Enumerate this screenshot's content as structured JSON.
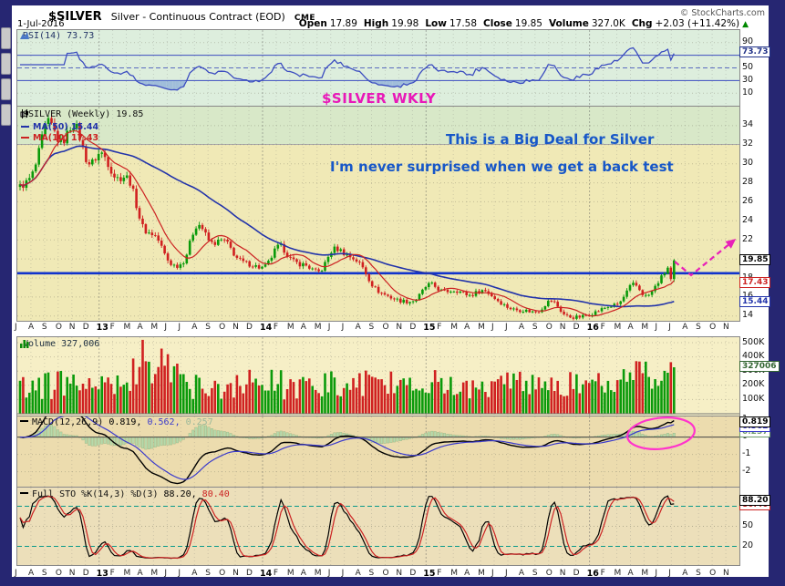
{
  "frame": {
    "color": "#262672"
  },
  "header": {
    "symbol": "$SILVER",
    "description": "Silver - Continuous Contract (EOD)",
    "exchange": "CME",
    "copyright": "© StockCharts.com",
    "date": "1-Jul-2016",
    "quote": [
      {
        "label": "Open",
        "value": "17.89"
      },
      {
        "label": "High",
        "value": "19.98"
      },
      {
        "label": "Low",
        "value": "17.58"
      },
      {
        "label": "Close",
        "value": "19.85"
      },
      {
        "label": "Volume",
        "value": "327.0K"
      },
      {
        "label": "Chg",
        "value": "+2.03 (+11.42%)"
      }
    ],
    "chg_direction": "up"
  },
  "panels": {
    "rsi": {
      "label": "RSI(14) 73.73",
      "ticks": [
        {
          "v": 90,
          "t": "90"
        },
        {
          "v": 70,
          "t": "70"
        },
        {
          "v": 50,
          "t": "50"
        },
        {
          "v": 30,
          "t": "30"
        },
        {
          "v": 10,
          "t": "10"
        }
      ],
      "boxes": [
        {
          "t": "73.73",
          "v": 73.73,
          "c": "#223388"
        }
      ]
    },
    "price": {
      "label": "$SILVER (Weekly) 19.85",
      "ma50_label": "MA(50) 15.44",
      "ma10_label": "MA(10) 17.43",
      "ticks": [
        {
          "v": 34,
          "t": "34"
        },
        {
          "v": 32,
          "t": "32"
        },
        {
          "v": 30,
          "t": "30"
        },
        {
          "v": 28,
          "t": "28"
        },
        {
          "v": 26,
          "t": "26"
        },
        {
          "v": 24,
          "t": "24"
        },
        {
          "v": 22,
          "t": "22"
        },
        {
          "v": 20,
          "t": "20"
        },
        {
          "v": 18,
          "t": "18"
        },
        {
          "v": 16,
          "t": "16"
        },
        {
          "v": 14,
          "t": "14"
        }
      ],
      "boxes": [
        {
          "t": "19.85",
          "v": 19.85,
          "c": "#000000"
        },
        {
          "t": "17.43",
          "v": 17.43,
          "c": "#cc2222"
        },
        {
          "t": "15.44",
          "v": 15.44,
          "c": "#2233aa"
        }
      ]
    },
    "volume": {
      "label": "Volume 327,006",
      "ticks": [
        {
          "v": 500000,
          "t": "500K"
        },
        {
          "v": 400000,
          "t": "400K"
        },
        {
          "v": 300000,
          "t": "300K"
        },
        {
          "v": 200000,
          "t": "200K"
        },
        {
          "v": 100000,
          "t": "100K"
        }
      ],
      "boxes": [
        {
          "t": "327006",
          "v": 327006,
          "c": "#336633"
        }
      ]
    },
    "macd": {
      "label": "MACD(12,26,9)",
      "values": [
        "0.819,",
        "0.562,",
        "0.257"
      ],
      "ticks": [
        {
          "v": 1,
          "t": "1"
        },
        {
          "v": 0,
          "t": "0"
        },
        {
          "v": -1,
          "t": "-1"
        },
        {
          "v": -2,
          "t": "-2"
        }
      ],
      "boxes": [
        {
          "t": "0.819",
          "v": 0.819,
          "c": "#000000"
        },
        {
          "t": "0.562",
          "v": 0.562,
          "c": "#3a3acc"
        },
        {
          "t": "0.257",
          "v": 0.257,
          "c": "#6a9a6a"
        }
      ]
    },
    "sto": {
      "label": "Full STO %K(14,3) %D(3)",
      "values": [
        "88.20,",
        "80.40"
      ],
      "ticks": [
        {
          "v": 80,
          "t": "80"
        },
        {
          "v": 50,
          "t": "50"
        },
        {
          "v": 20,
          "t": "20"
        }
      ],
      "boxes": [
        {
          "t": "88.20",
          "v": 88.2,
          "c": "#000000"
        },
        {
          "t": "80.40",
          "v": 80.4,
          "c": "#cc2222"
        }
      ]
    }
  },
  "annotations": {
    "wkly": "$SILVER WKLY",
    "line1": "This is a Big Deal for Silver",
    "line2": "I'm never surprised when we get a back test",
    "arrow_color": "#e820b8",
    "ellipse_color": "#ff33cc"
  },
  "colors": {
    "candle_up": "#0a9a0a",
    "candle_down": "#d02020",
    "ma50": "#2233aa",
    "ma10": "#cc2222",
    "support_line": "#1133cc",
    "rsi_line": "#3b4cc0",
    "macd_line": "#000000",
    "macd_signal": "#3a3acc",
    "macd_hist": "#b7d9aa",
    "sto_k": "#000000",
    "sto_d": "#cc2222"
  },
  "chart_data": {
    "type": "candlestick",
    "timeframe": "weekly",
    "weeks": 209,
    "x_month_labels": [
      "J",
      "A",
      "S",
      "O",
      "N",
      "D",
      "13",
      "F",
      "M",
      "A",
      "M",
      "J",
      "J",
      "A",
      "S",
      "O",
      "N",
      "D",
      "14",
      "F",
      "M",
      "A",
      "M",
      "J",
      "J",
      "A",
      "S",
      "O",
      "N",
      "D",
      "15",
      "F",
      "M",
      "A",
      "M",
      "J",
      "J",
      "A",
      "S",
      "O",
      "N",
      "D",
      "16",
      "F",
      "M",
      "A",
      "M",
      "J",
      "J",
      "A",
      "S",
      "O",
      "N"
    ],
    "year_label_indices": [
      6,
      18,
      30,
      42
    ],
    "price": {
      "monthly_closes": [
        27.6,
        29.2,
        34.3,
        32.2,
        34.1,
        30.1,
        31.1,
        28.6,
        28.3,
        23.4,
        22.3,
        19.6,
        19.8,
        23.6,
        21.7,
        21.9,
        20.0,
        19.4,
        19.2,
        21.3,
        19.8,
        19.3,
        18.7,
        21.0,
        20.4,
        19.4,
        17.0,
        16.1,
        15.6,
        15.7,
        17.3,
        16.6,
        16.7,
        16.2,
        16.7,
        15.7,
        14.8,
        14.6,
        14.5,
        15.6,
        14.1,
        13.9,
        14.3,
        14.9,
        15.4,
        17.3,
        16.1,
        17.9,
        19.85
      ],
      "last_candle": {
        "open": 17.89,
        "high": 19.98,
        "low": 17.58,
        "close": 19.85
      },
      "support_line": 18.5,
      "zone_split": 32,
      "ylim": [
        13.5,
        36
      ],
      "yticks": [
        34,
        32,
        30,
        28,
        26,
        24,
        22,
        20,
        18,
        16,
        14
      ],
      "ma50_last": 15.44,
      "ma10_last": 17.43,
      "close_last": 19.85
    },
    "rsi": {
      "period": 14,
      "last": 73.73,
      "overbought": 70,
      "mid": 50,
      "oversold": 30,
      "ylim": [
        -10,
        110
      ]
    },
    "volume": {
      "last": 327006,
      "ylim": [
        0,
        530000
      ],
      "spikes": [
        {
          "week": 39,
          "value": 520000
        },
        {
          "week": 208,
          "value": 327006
        }
      ]
    },
    "macd": {
      "params": [
        12,
        26,
        9
      ],
      "last": [
        0.819,
        0.562,
        0.257
      ],
      "ylim": [
        -2.86,
        1.19
      ]
    },
    "sto": {
      "params": [
        14,
        3,
        3
      ],
      "last": [
        88.2,
        80.4
      ],
      "overbought": 80,
      "oversold": 20,
      "ylim": [
        -8,
        108
      ]
    }
  }
}
